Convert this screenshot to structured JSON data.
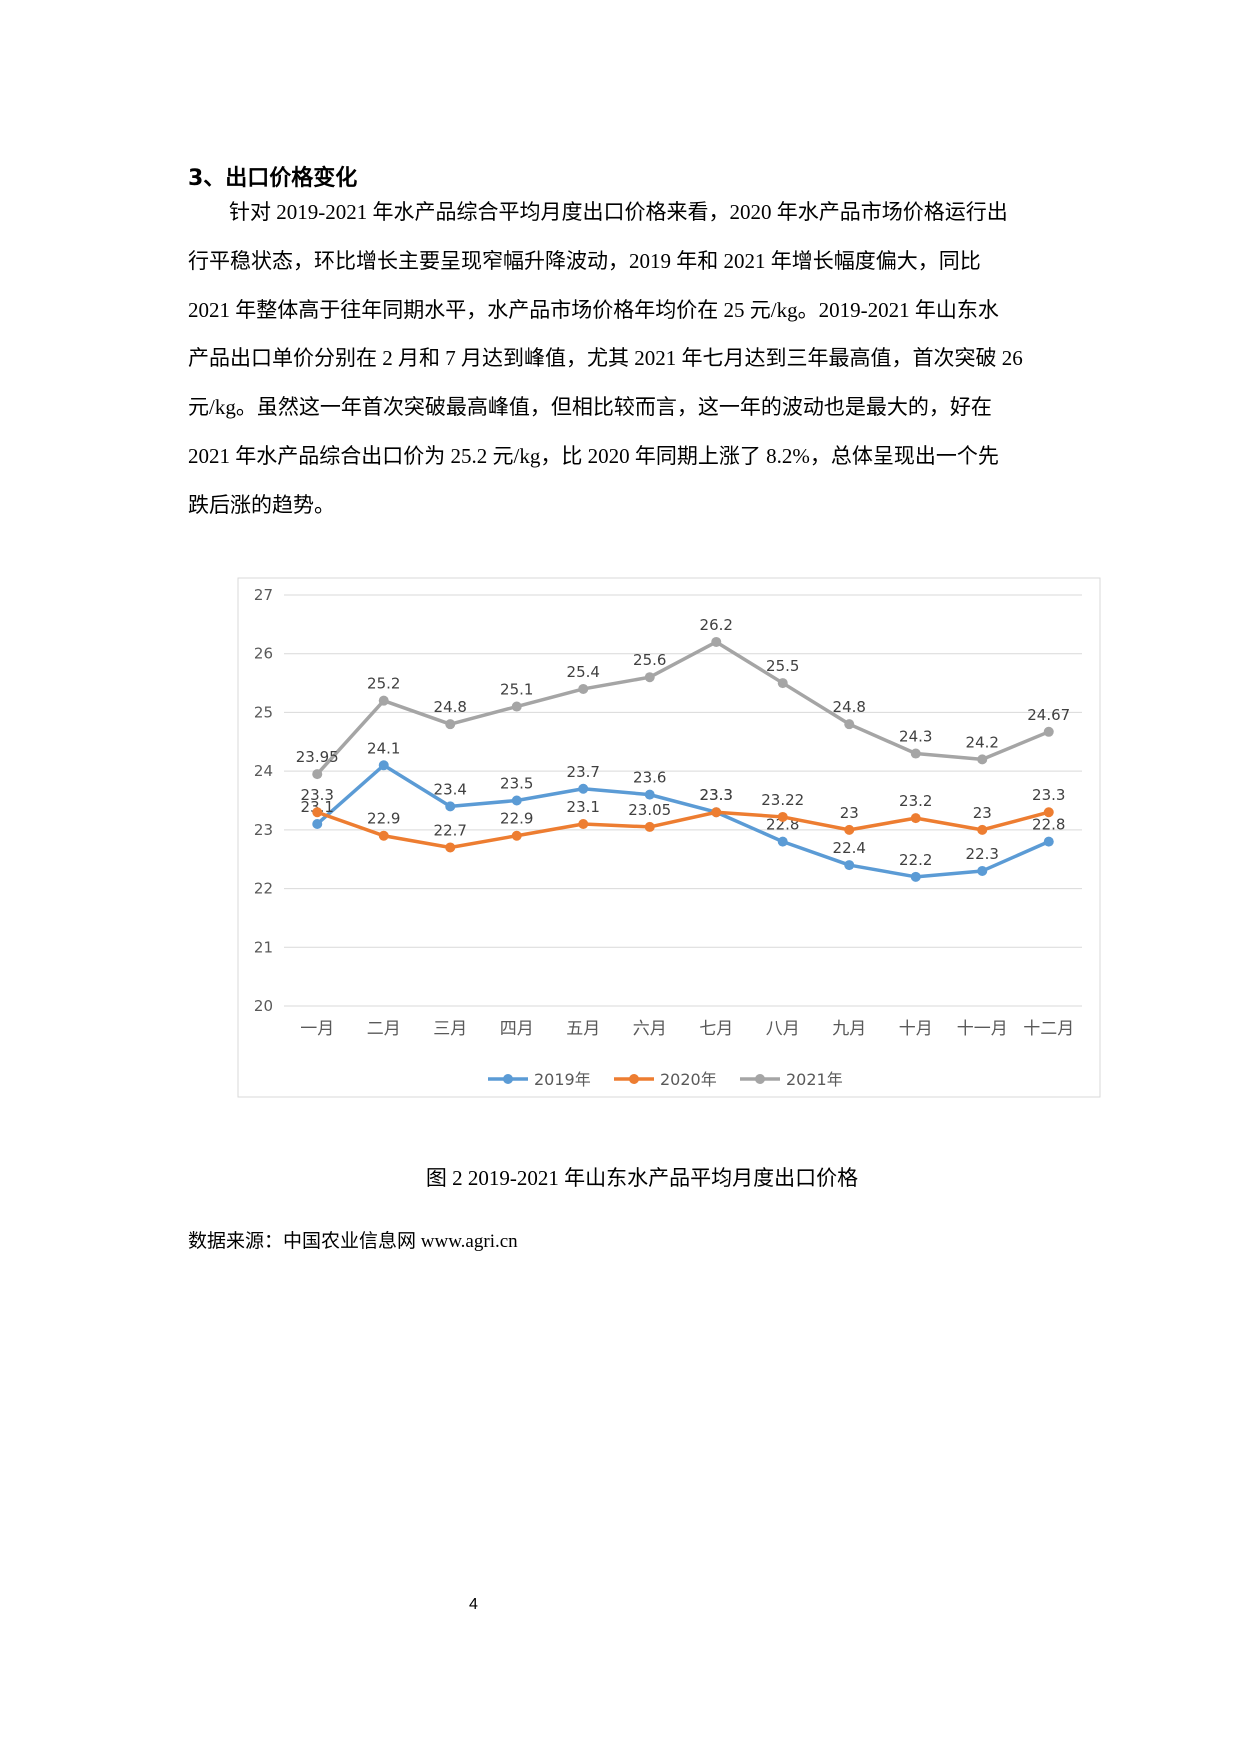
{
  "heading": "3、出口价格变化",
  "paragraph": [
    "针对 2019-2021 年水产品综合平均月度出口价格来看，2020 年水产品市场价格运行出",
    "行平稳状态，环比增长主要呈现窄幅升降波动，2019 年和 2021 年增长幅度偏大，同比",
    "2021 年整体高于往年同期水平，水产品市场价格年均价在 25 元/kg。2019-2021 年山东水",
    "产品出口单价分别在 2 月和 7 月达到峰值，尤其 2021 年七月达到三年最高值，首次突破 26",
    "元/kg。虽然这一年首次突破最高峰值，但相比较而言，这一年的波动也是最大的，好在",
    "2021 年水产品综合出口价为 25.2 元/kg，比 2020 年同期上涨了 8.2%，总体呈现出一个先",
    "跌后涨的趋势。"
  ],
  "chart_data": {
    "type": "line",
    "categories": [
      "一月",
      "二月",
      "三月",
      "四月",
      "五月",
      "六月",
      "七月",
      "八月",
      "九月",
      "十月",
      "十一月",
      "十二月"
    ],
    "series": [
      {
        "name": "2019年",
        "color": "#5b9bd5",
        "values": [
          23.1,
          24.1,
          23.4,
          23.5,
          23.7,
          23.6,
          23.3,
          22.8,
          22.4,
          22.2,
          22.3,
          22.8
        ]
      },
      {
        "name": "2020年",
        "color": "#ed7d31",
        "values": [
          23.3,
          22.9,
          22.7,
          22.9,
          23.1,
          23.05,
          23.3,
          23.22,
          23,
          23.2,
          23,
          23.3
        ]
      },
      {
        "name": "2021年",
        "color": "#a5a5a5",
        "values": [
          23.95,
          25.2,
          24.8,
          25.1,
          25.4,
          25.6,
          26.2,
          25.5,
          24.8,
          24.3,
          24.2,
          24.67
        ]
      }
    ],
    "ylim": [
      20,
      27
    ],
    "yticks": [
      20,
      21,
      22,
      23,
      24,
      25,
      26,
      27
    ],
    "grid": true,
    "legend": "bottom",
    "data_labels": true
  },
  "caption": "图 2 2019-2021 年山东水产品平均月度出口价格",
  "source": "数据来源：中国农业信息网 www.agri.cn",
  "page_number": "4"
}
